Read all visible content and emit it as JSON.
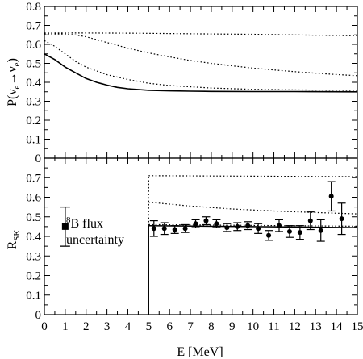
{
  "chart_data": [
    {
      "type": "line",
      "panel": "top",
      "ylabel_parts": {
        "main": "P(ν",
        "sub1": "e",
        "arrow": "→ν",
        "sub2": "e",
        "close": ")"
      },
      "xlim": [
        0,
        15
      ],
      "ylim": [
        0,
        0.8
      ],
      "yticks": [
        "0",
        "0.1",
        "0.2",
        "0.3",
        "0.4",
        "0.5",
        "0.6",
        "0.7",
        "0.8"
      ],
      "grid": false,
      "series": [
        {
          "style": "solid",
          "x": [
            0,
            0.5,
            1,
            1.5,
            2,
            2.5,
            3,
            3.5,
            4,
            5,
            6,
            7,
            8,
            10,
            12,
            15
          ],
          "y": [
            0.55,
            0.52,
            0.48,
            0.45,
            0.42,
            0.4,
            0.385,
            0.373,
            0.366,
            0.358,
            0.355,
            0.353,
            0.352,
            0.351,
            0.351,
            0.35
          ]
        },
        {
          "style": "dotted",
          "x": [
            0,
            0.5,
            1,
            1.5,
            2,
            3,
            4,
            5,
            6,
            8,
            10,
            12,
            15
          ],
          "y": [
            0.62,
            0.59,
            0.55,
            0.51,
            0.48,
            0.44,
            0.415,
            0.395,
            0.383,
            0.37,
            0.363,
            0.36,
            0.357
          ]
        },
        {
          "style": "dotted",
          "x": [
            0,
            0.5,
            1,
            1.5,
            2,
            2.5,
            3,
            4,
            5,
            6,
            7,
            8,
            9,
            10,
            11,
            12,
            13,
            14,
            15
          ],
          "y": [
            0.655,
            0.655,
            0.655,
            0.65,
            0.64,
            0.625,
            0.61,
            0.58,
            0.555,
            0.534,
            0.515,
            0.5,
            0.487,
            0.475,
            0.465,
            0.456,
            0.448,
            0.441,
            0.435
          ]
        },
        {
          "style": "dotted",
          "x": [
            0,
            2,
            4,
            6,
            8,
            10,
            12,
            14,
            15
          ],
          "y": [
            0.66,
            0.66,
            0.659,
            0.657,
            0.655,
            0.653,
            0.65,
            0.647,
            0.645
          ]
        }
      ]
    },
    {
      "type": "scatter",
      "panel": "bottom",
      "ylabel_parts": {
        "main": "R",
        "sub": "SK"
      },
      "xlabel": "E  [MeV]",
      "xlim": [
        0,
        15
      ],
      "ylim": [
        0,
        0.8
      ],
      "xticks": [
        "0",
        "1",
        "2",
        "3",
        "4",
        "5",
        "6",
        "7",
        "8",
        "9",
        "10",
        "11",
        "12",
        "13",
        "14",
        "15"
      ],
      "yticks": [
        "0",
        "0.1",
        "0.2",
        "0.3",
        "0.4",
        "0.5",
        "0.6",
        "0.7"
      ],
      "grid": false,
      "points": [
        {
          "x": 5.25,
          "y": 0.44,
          "err": 0.04
        },
        {
          "x": 5.75,
          "y": 0.44,
          "err": 0.03
        },
        {
          "x": 6.25,
          "y": 0.435,
          "err": 0.02
        },
        {
          "x": 6.75,
          "y": 0.44,
          "err": 0.02
        },
        {
          "x": 7.25,
          "y": 0.465,
          "err": 0.02
        },
        {
          "x": 7.75,
          "y": 0.48,
          "err": 0.02
        },
        {
          "x": 8.25,
          "y": 0.465,
          "err": 0.02
        },
        {
          "x": 8.75,
          "y": 0.445,
          "err": 0.02
        },
        {
          "x": 9.25,
          "y": 0.45,
          "err": 0.02
        },
        {
          "x": 9.75,
          "y": 0.455,
          "err": 0.02
        },
        {
          "x": 10.25,
          "y": 0.44,
          "err": 0.025
        },
        {
          "x": 10.75,
          "y": 0.405,
          "err": 0.025
        },
        {
          "x": 11.25,
          "y": 0.455,
          "err": 0.03
        },
        {
          "x": 11.75,
          "y": 0.425,
          "err": 0.03
        },
        {
          "x": 12.25,
          "y": 0.42,
          "err": 0.035
        },
        {
          "x": 12.75,
          "y": 0.48,
          "err": 0.045
        },
        {
          "x": 13.25,
          "y": 0.43,
          "err": 0.055
        },
        {
          "x": 13.75,
          "y": 0.605,
          "err": 0.075
        },
        {
          "x": 14.25,
          "y": 0.49,
          "err": 0.08
        }
      ],
      "curves": [
        {
          "style": "solid",
          "x": [
            5,
            15
          ],
          "y": [
            0.455,
            0.445
          ]
        },
        {
          "style": "dotted",
          "x": [
            5,
            15
          ],
          "y": [
            0.46,
            0.452
          ]
        },
        {
          "style": "dotted",
          "x": [
            5,
            7,
            9,
            11,
            13,
            15
          ],
          "y": [
            0.575,
            0.555,
            0.54,
            0.53,
            0.522,
            0.515
          ]
        },
        {
          "style": "dotted",
          "x": [
            5,
            15
          ],
          "y": [
            0.71,
            0.705
          ]
        }
      ],
      "threshold_x": 5,
      "flux_marker": {
        "x": 1,
        "y": 0.45,
        "low": 0.35,
        "high": 0.55
      },
      "annotation": {
        "superscript": "8",
        "line1": "B flux",
        "line2": "uncertainty"
      }
    }
  ]
}
